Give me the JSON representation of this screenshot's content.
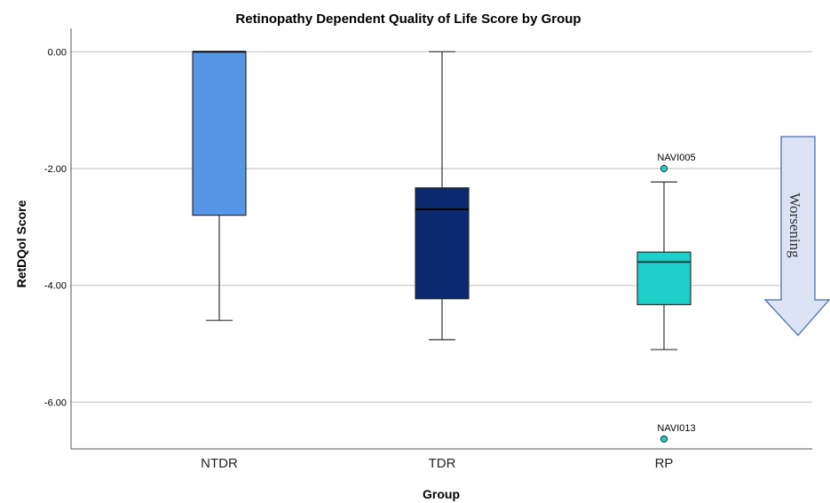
{
  "chart_data": {
    "type": "boxplot",
    "title": "Retinopathy Dependent Quality of Life Score by Group",
    "xlabel": "Group",
    "ylabel": "RetDQol Score",
    "ylim": [
      -6.8,
      0.4
    ],
    "yticks": [
      0,
      -2,
      -4,
      -6
    ],
    "ytick_labels": [
      "0.00",
      "-2.00",
      "-4.00",
      "-6.00"
    ],
    "grid": "horizontal",
    "categories": [
      "NTDR",
      "TDR",
      "RP"
    ],
    "boxes": [
      {
        "category": "NTDR",
        "min": -4.6,
        "q1": -2.8,
        "median": 0.0,
        "q3": 0.0,
        "max": 0.0,
        "color": "#5596e6",
        "median_color": "#000000"
      },
      {
        "category": "TDR",
        "min": -4.93,
        "q1": -4.23,
        "median": -2.7,
        "q3": -2.33,
        "max": 0.0,
        "color": "#0b2a6f",
        "median_color": "#000000"
      },
      {
        "category": "RP",
        "min": -5.1,
        "q1": -4.33,
        "median": -3.6,
        "q3": -3.43,
        "max": -2.23,
        "color": "#1ecfc9",
        "median_color": "#1a3a3a"
      }
    ],
    "outliers": [
      {
        "category": "RP",
        "value": -2.0,
        "label": "NAVI005"
      },
      {
        "category": "RP",
        "value": -6.63,
        "label": "NAVI013"
      }
    ],
    "annotation": {
      "text": "Worsening",
      "direction": "down",
      "fill": "#dce3f4",
      "stroke": "#4a6fb0"
    }
  }
}
